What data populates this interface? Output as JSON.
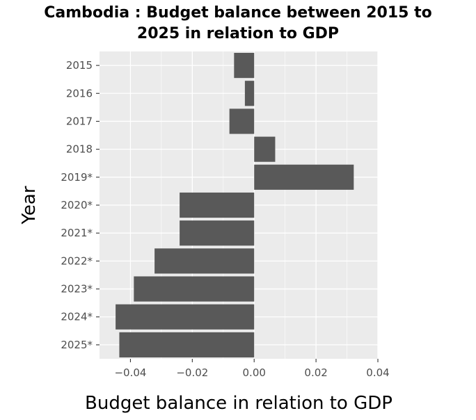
{
  "chart_data": {
    "type": "bar",
    "orientation": "horizontal",
    "title_lines": [
      "Cambodia : Budget balance between 2015 to",
      "2025 in relation to GDP"
    ],
    "xlabel": "Budget balance in relation to GDP",
    "ylabel": "Year",
    "categories": [
      "2015",
      "2016",
      "2017",
      "2018",
      "2019*",
      "2020*",
      "2021*",
      "2022*",
      "2023*",
      "2024*",
      "2025*"
    ],
    "values": [
      -0.0065,
      -0.003,
      -0.008,
      0.0068,
      0.0322,
      -0.0241,
      -0.0241,
      -0.0322,
      -0.0389,
      -0.0448,
      -0.0436
    ],
    "xlim": [
      -0.05,
      0.04
    ],
    "xticks": [
      -0.04,
      -0.02,
      0.0,
      0.02,
      0.04
    ],
    "xtick_labels": [
      "−0.04",
      "−0.02",
      "0.00",
      "0.02",
      "0.04"
    ],
    "grid": true,
    "colors": {
      "bar": "#595959",
      "panel": "#ebebeb",
      "grid": "#ffffff"
    }
  }
}
